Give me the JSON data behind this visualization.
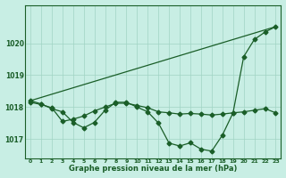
{
  "xlabel": "Graphe pression niveau de la mer (hPa)",
  "ylim": [
    1016.4,
    1021.2
  ],
  "yticks": [
    1017,
    1018,
    1019,
    1020
  ],
  "bg_color": "#c8eee4",
  "grid_color": "#a0d4c4",
  "line_color": "#1a5e28",
  "text_color": "#1a5e28",
  "series_main": [
    1018.2,
    1018.1,
    1017.95,
    1017.85,
    1017.52,
    1017.35,
    1017.52,
    1017.9,
    1018.15,
    1018.15,
    1018.0,
    1017.85,
    1017.5,
    1016.87,
    1016.78,
    1016.88,
    1016.68,
    1016.62,
    1017.12,
    1017.82,
    1019.58,
    1020.12,
    1020.35,
    1020.52
  ],
  "series_flat": [
    1018.15,
    1018.08,
    1017.98,
    1017.55,
    1017.62,
    1017.72,
    1017.88,
    1018.0,
    1018.12,
    1018.12,
    1018.05,
    1017.98,
    1017.85,
    1017.82,
    1017.78,
    1017.8,
    1017.78,
    1017.75,
    1017.78,
    1017.82,
    1017.85,
    1017.9,
    1017.95,
    1017.82
  ],
  "series_diag_pts": [
    [
      0,
      1018.2
    ],
    [
      8,
      1018.15
    ],
    [
      9,
      1018.15
    ],
    [
      19,
      1017.82
    ],
    [
      20,
      1019.58
    ],
    [
      21,
      1020.12
    ],
    [
      22,
      1020.35
    ],
    [
      23,
      1020.52
    ]
  ],
  "markersize": 2.5
}
